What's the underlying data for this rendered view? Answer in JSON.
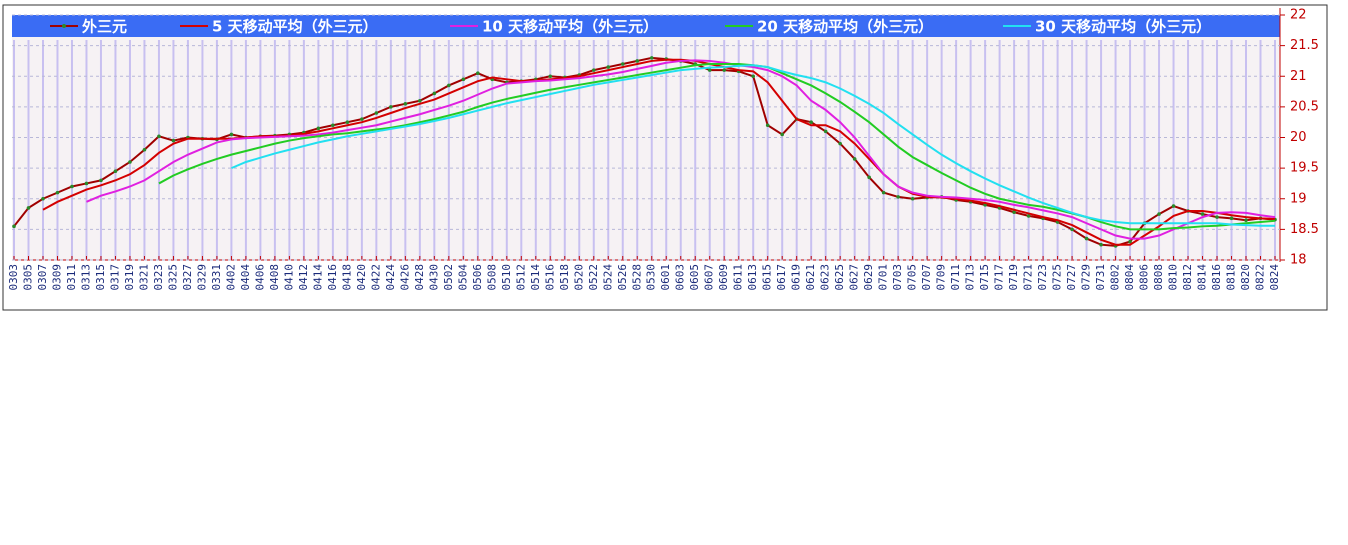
{
  "chart_data": {
    "type": "line",
    "categories": [
      "0303",
      "0305",
      "0307",
      "0309",
      "0311",
      "0313",
      "0315",
      "0317",
      "0319",
      "0321",
      "0323",
      "0325",
      "0327",
      "0329",
      "0331",
      "0402",
      "0404",
      "0406",
      "0408",
      "0410",
      "0412",
      "0414",
      "0416",
      "0418",
      "0420",
      "0422",
      "0424",
      "0426",
      "0428",
      "0430",
      "0502",
      "0504",
      "0506",
      "0508",
      "0510",
      "0512",
      "0514",
      "0516",
      "0518",
      "0520",
      "0522",
      "0524",
      "0526",
      "0528",
      "0530",
      "0601",
      "0603",
      "0605",
      "0607",
      "0609",
      "0611",
      "0613",
      "0615",
      "0617",
      "0619",
      "0621",
      "0623",
      "0625",
      "0627",
      "0629",
      "0701",
      "0703",
      "0705",
      "0707",
      "0709",
      "0711",
      "0713",
      "0715",
      "0717",
      "0719",
      "0721",
      "0723",
      "0725",
      "0727",
      "0729",
      "0731",
      "0802",
      "0804",
      "0806",
      "0808",
      "0810",
      "0812",
      "0814",
      "0816",
      "0818",
      "0820",
      "0822",
      "0824"
    ],
    "series": [
      {
        "name": "外三元",
        "color": "#a00000",
        "values": [
          18.55,
          18.85,
          19.0,
          19.1,
          19.2,
          19.25,
          19.3,
          19.45,
          19.6,
          19.8,
          20.02,
          19.95,
          20.0,
          19.98,
          19.97,
          20.05,
          20.0,
          20.02,
          20.03,
          20.05,
          20.08,
          20.15,
          20.2,
          20.25,
          20.3,
          20.4,
          20.5,
          20.55,
          20.6,
          20.72,
          20.85,
          20.95,
          21.05,
          20.95,
          20.9,
          20.92,
          20.95,
          21.0,
          20.98,
          21.02,
          21.1,
          21.15,
          21.2,
          21.25,
          21.3,
          21.28,
          21.25,
          21.2,
          21.1,
          21.1,
          21.08,
          21.0,
          20.2,
          20.05,
          20.3,
          20.25,
          20.1,
          19.9,
          19.65,
          19.35,
          19.1,
          19.03,
          19.0,
          19.02,
          19.03,
          18.98,
          18.95,
          18.9,
          18.85,
          18.78,
          18.72,
          18.68,
          18.62,
          18.5,
          18.35,
          18.25,
          18.23,
          18.3,
          18.6,
          18.75,
          18.88,
          18.8,
          18.75,
          18.7,
          18.68,
          18.65,
          18.68,
          18.66
        ]
      },
      {
        "name": "5 天移动平均（外三元）",
        "color": "#d40000",
        "values": [
          null,
          null,
          18.82,
          18.95,
          19.05,
          19.15,
          19.22,
          19.3,
          19.4,
          19.55,
          19.75,
          19.9,
          19.98,
          19.98,
          19.98,
          19.98,
          20.0,
          20.02,
          20.02,
          20.03,
          20.06,
          20.1,
          20.15,
          20.2,
          20.25,
          20.32,
          20.4,
          20.48,
          20.55,
          20.62,
          20.72,
          20.82,
          20.92,
          20.98,
          20.95,
          20.92,
          20.93,
          20.95,
          20.97,
          21.0,
          21.05,
          21.1,
          21.15,
          21.2,
          21.25,
          21.27,
          21.27,
          21.25,
          21.2,
          21.15,
          21.1,
          21.08,
          20.9,
          20.6,
          20.3,
          20.2,
          20.2,
          20.1,
          19.9,
          19.65,
          19.4,
          19.2,
          19.08,
          19.03,
          19.02,
          19.0,
          18.97,
          18.93,
          18.88,
          18.82,
          18.76,
          18.7,
          18.65,
          18.57,
          18.45,
          18.33,
          18.25,
          18.25,
          18.4,
          18.55,
          18.72,
          18.8,
          18.8,
          18.77,
          18.73,
          18.7,
          18.68,
          18.67
        ]
      },
      {
        "name": "10 天移动平均（外三元）",
        "color": "#e020e0",
        "values": [
          null,
          null,
          null,
          null,
          null,
          18.95,
          19.05,
          19.12,
          19.2,
          19.3,
          19.45,
          19.6,
          19.72,
          19.82,
          19.92,
          19.97,
          19.99,
          20.0,
          20.01,
          20.02,
          20.03,
          20.05,
          20.08,
          20.12,
          20.16,
          20.2,
          20.26,
          20.32,
          20.38,
          20.45,
          20.52,
          20.6,
          20.7,
          20.8,
          20.88,
          20.9,
          20.92,
          20.93,
          20.95,
          20.97,
          21.0,
          21.03,
          21.07,
          21.12,
          21.17,
          21.22,
          21.25,
          21.26,
          21.25,
          21.22,
          21.18,
          21.15,
          21.1,
          21.0,
          20.85,
          20.6,
          20.45,
          20.25,
          20.0,
          19.7,
          19.4,
          19.2,
          19.1,
          19.05,
          19.03,
          19.02,
          19.0,
          18.98,
          18.95,
          18.9,
          18.86,
          18.81,
          18.76,
          18.7,
          18.6,
          18.5,
          18.4,
          18.35,
          18.35,
          18.4,
          18.5,
          18.6,
          18.7,
          18.77,
          18.78,
          18.77,
          18.73,
          18.7
        ]
      },
      {
        "name": "20 天移动平均（外三元）",
        "color": "#22cc22",
        "values": [
          null,
          null,
          null,
          null,
          null,
          null,
          null,
          null,
          null,
          null,
          19.25,
          19.38,
          19.48,
          19.57,
          19.65,
          19.72,
          19.78,
          19.84,
          19.9,
          19.95,
          19.99,
          20.02,
          20.05,
          20.07,
          20.1,
          20.13,
          20.16,
          20.2,
          20.25,
          20.3,
          20.36,
          20.42,
          20.5,
          20.57,
          20.63,
          20.68,
          20.73,
          20.78,
          20.82,
          20.86,
          20.9,
          20.94,
          20.98,
          21.02,
          21.06,
          21.1,
          21.14,
          21.18,
          21.2,
          21.2,
          21.2,
          21.18,
          21.15,
          21.05,
          20.95,
          20.85,
          20.72,
          20.58,
          20.42,
          20.25,
          20.05,
          19.85,
          19.68,
          19.55,
          19.42,
          19.3,
          19.18,
          19.08,
          19.0,
          18.95,
          18.9,
          18.87,
          18.82,
          18.76,
          18.7,
          18.62,
          18.55,
          18.5,
          18.5,
          18.5,
          18.52,
          18.53,
          18.55,
          18.56,
          18.58,
          18.6,
          18.62,
          18.64
        ]
      },
      {
        "name": "30 天移动平均（外三元）",
        "color": "#22e0f0",
        "values": [
          null,
          null,
          null,
          null,
          null,
          null,
          null,
          null,
          null,
          null,
          null,
          null,
          null,
          null,
          null,
          19.5,
          19.6,
          19.67,
          19.74,
          19.8,
          19.86,
          19.92,
          19.97,
          20.02,
          20.06,
          20.1,
          20.14,
          20.18,
          20.22,
          20.27,
          20.32,
          20.38,
          20.44,
          20.5,
          20.56,
          20.61,
          20.66,
          20.71,
          20.76,
          20.81,
          20.86,
          20.9,
          20.94,
          20.98,
          21.02,
          21.06,
          21.1,
          21.12,
          21.14,
          21.15,
          21.17,
          21.18,
          21.15,
          21.08,
          21.02,
          20.97,
          20.9,
          20.8,
          20.68,
          20.55,
          20.4,
          20.22,
          20.05,
          19.88,
          19.72,
          19.58,
          19.45,
          19.33,
          19.22,
          19.12,
          19.02,
          18.93,
          18.85,
          18.77,
          18.7,
          18.65,
          18.62,
          18.6,
          18.6,
          18.6,
          18.6,
          18.6,
          18.6,
          18.6,
          18.58,
          18.57,
          18.56,
          18.56
        ]
      }
    ],
    "ylim": [
      18,
      22
    ],
    "yticks": [
      18,
      18.5,
      19,
      19.5,
      20,
      20.5,
      21,
      21.5,
      22
    ],
    "grid": true,
    "legend": "top"
  }
}
